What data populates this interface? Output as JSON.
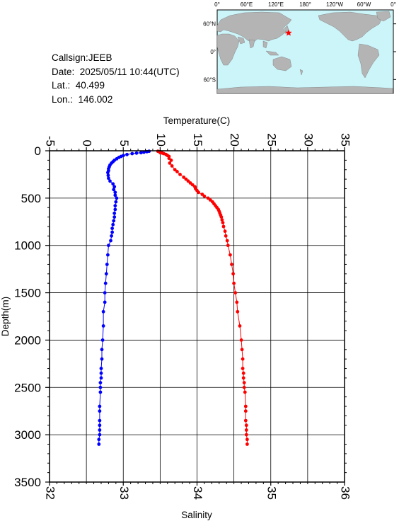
{
  "info": {
    "callsign": "Callsign:JEEB",
    "date": "Date:  2025/05/11 10:44(UTC)",
    "lat": "Lat.:  40.499",
    "lon": "Lon.:  146.002"
  },
  "map": {
    "lon_labels": [
      "0°",
      "60°E",
      "120°E",
      "180°",
      "120°W",
      "60°W",
      "0°"
    ],
    "lat_labels": [
      "60°N",
      "0°",
      "60°S"
    ],
    "station": {
      "lat": 40.499,
      "lon": 146.002
    },
    "colors": {
      "ocean": "#ccf5fa",
      "land": "#b4b4b4",
      "marker": "#ff0000"
    }
  },
  "chart_data": {
    "type": "scatter",
    "ylabel": "Depth(m)",
    "top_axis_label": "Temperature(C)",
    "bottom_axis_label": "Salinity",
    "ylim": [
      3500,
      0
    ],
    "y_ticks": [
      0,
      500,
      1000,
      1500,
      2000,
      2500,
      3000,
      3500
    ],
    "temperature_lim": [
      -5,
      35
    ],
    "temperature_ticks": [
      -5,
      0,
      5,
      10,
      15,
      20,
      25,
      30,
      35
    ],
    "salinity_lim": [
      32,
      36
    ],
    "salinity_ticks": [
      32,
      33,
      34,
      35,
      36
    ],
    "grid": true,
    "series": [
      {
        "axis": "temperature",
        "color": "#0000ff",
        "depth": [
          5,
          10,
          15,
          20,
          25,
          30,
          40,
          50,
          60,
          70,
          85,
          100,
          115,
          130,
          150,
          170,
          190,
          210,
          230,
          260,
          290,
          320,
          350,
          380,
          410,
          440,
          470,
          500,
          540,
          580,
          620,
          660,
          700,
          740,
          780,
          820,
          860,
          900,
          950,
          1000,
          1100,
          1200,
          1300,
          1400,
          1500,
          1600,
          1700,
          1850,
          2000,
          2100,
          2200,
          2300,
          2350,
          2400,
          2450,
          2500,
          2550,
          2700,
          2750,
          2850,
          2900,
          2950,
          3000,
          3050,
          3100
        ],
        "values": [
          8.5,
          8.2,
          7.8,
          7.4,
          6.8,
          6.2,
          5.5,
          5.0,
          4.7,
          4.4,
          4.1,
          3.8,
          3.6,
          3.4,
          3.2,
          3.1,
          3.0,
          3.0,
          2.9,
          2.95,
          3.0,
          3.2,
          3.6,
          3.8,
          3.7,
          3.9,
          3.9,
          4.1,
          4.0,
          3.9,
          3.9,
          3.8,
          3.8,
          3.7,
          3.6,
          3.5,
          3.5,
          3.4,
          3.3,
          3.0,
          2.9,
          2.8,
          2.7,
          2.6,
          2.5,
          2.5,
          2.3,
          2.3,
          2.2,
          2.1,
          2.1,
          2.0,
          2.0,
          2.0,
          1.9,
          1.9,
          1.9,
          1.8,
          1.8,
          1.8,
          1.8,
          1.8,
          1.8,
          1.7,
          1.7
        ]
      },
      {
        "axis": "salinity",
        "color": "#ff0000",
        "depth": [
          5,
          10,
          15,
          20,
          25,
          30,
          40,
          50,
          60,
          80,
          100,
          130,
          160,
          200,
          220,
          250,
          280,
          300,
          320,
          340,
          360,
          380,
          400,
          420,
          440,
          460,
          480,
          500,
          520,
          540,
          560,
          580,
          600,
          620,
          640,
          660,
          680,
          700,
          730,
          760,
          800,
          850,
          900,
          950,
          1000,
          1100,
          1200,
          1300,
          1400,
          1500,
          1600,
          1700,
          1850,
          2000,
          2100,
          2200,
          2300,
          2350,
          2400,
          2450,
          2500,
          2550,
          2700,
          2750,
          2850,
          2900,
          2950,
          3000,
          3050,
          3100
        ],
        "values": [
          33.47,
          33.5,
          33.52,
          33.5,
          33.53,
          33.55,
          33.58,
          33.6,
          33.62,
          33.62,
          33.65,
          33.63,
          33.66,
          33.7,
          33.73,
          33.77,
          33.82,
          33.85,
          33.88,
          33.91,
          33.94,
          33.97,
          33.98,
          34.0,
          34.02,
          34.07,
          34.1,
          34.15,
          34.18,
          34.21,
          34.23,
          34.25,
          34.27,
          34.29,
          34.3,
          34.31,
          34.32,
          34.33,
          34.34,
          34.35,
          34.36,
          34.38,
          34.39,
          34.41,
          34.42,
          34.45,
          34.47,
          34.49,
          34.5,
          34.52,
          34.54,
          34.55,
          34.58,
          34.6,
          34.61,
          34.62,
          34.62,
          34.63,
          34.63,
          34.64,
          34.64,
          34.65,
          34.66,
          34.66,
          34.66,
          34.67,
          34.67,
          34.67,
          34.68,
          34.68
        ]
      }
    ]
  }
}
